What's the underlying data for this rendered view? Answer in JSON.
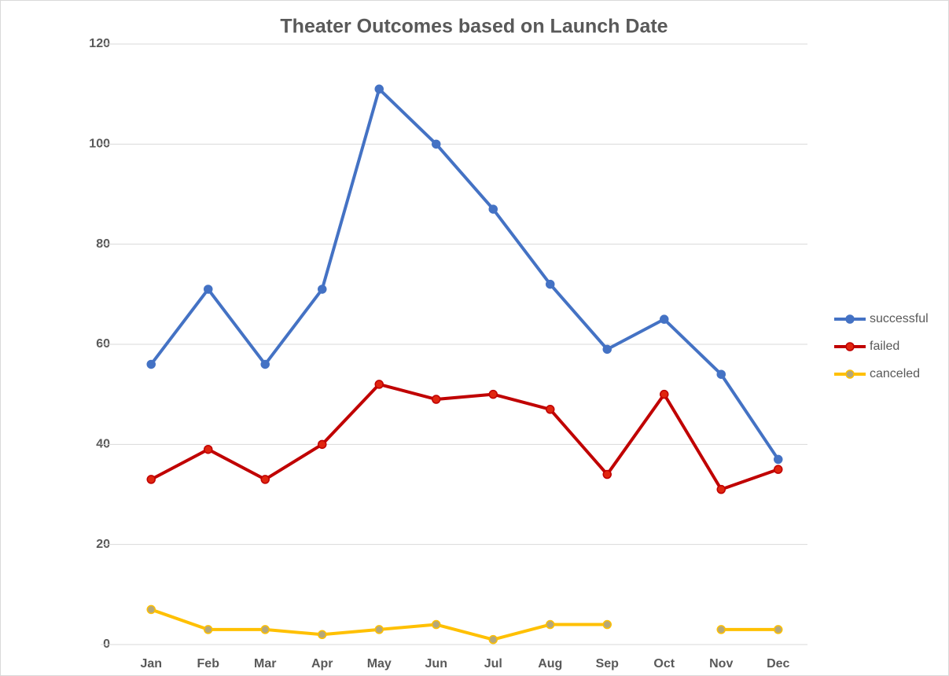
{
  "chart_data": {
    "type": "line",
    "title": "Theater Outcomes based on Launch Date",
    "categories": [
      "Jan",
      "Feb",
      "Mar",
      "Apr",
      "May",
      "Jun",
      "Jul",
      "Aug",
      "Sep",
      "Oct",
      "Nov",
      "Dec"
    ],
    "series": [
      {
        "name": "successful",
        "color": "#4472c4",
        "marker_color": "#4472c4",
        "values": [
          56,
          71,
          56,
          71,
          111,
          100,
          87,
          72,
          59,
          65,
          54,
          37
        ]
      },
      {
        "name": "failed",
        "color": "#c00000",
        "marker_color": "#e0260f",
        "values": [
          33,
          39,
          33,
          40,
          52,
          49,
          50,
          47,
          34,
          50,
          31,
          35
        ]
      },
      {
        "name": "canceled",
        "color": "#ffc000",
        "marker_color": "#b4a77a",
        "values": [
          7,
          3,
          3,
          2,
          3,
          4,
          1,
          4,
          4,
          null,
          3,
          3
        ]
      }
    ],
    "ylim": [
      0,
      120
    ],
    "yticks": [
      0,
      20,
      40,
      60,
      80,
      100,
      120
    ],
    "grid": true,
    "legend": "right"
  }
}
